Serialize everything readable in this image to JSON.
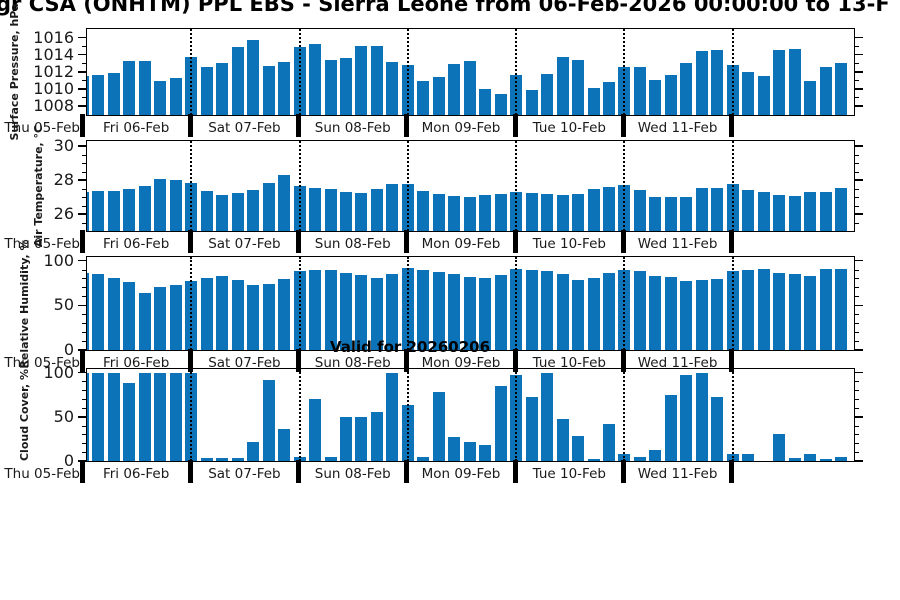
{
  "title": "gr CSA (ONHTM) PPL EBS  - Sierra Leone from 06-Feb-2026 00:00:00 to 13-F",
  "annotation": "Valid for 20260206",
  "colors": {
    "bar": "#0d73b8",
    "axis": "#000000"
  },
  "x_axis": {
    "left_tick_label": "Thu 05-Feb",
    "day_labels": [
      "Fri 06-Feb",
      "Sat 07-Feb",
      "Sun 08-Feb",
      "Mon 09-Feb",
      "Tue 10-Feb",
      "Wed 11-Feb"
    ]
  },
  "chart_data": [
    {
      "type": "bar",
      "name": "surface-pressure",
      "ylabel": "Surface Pressure, hPa",
      "ylim": [
        1007,
        1017
      ],
      "yticks": [
        1008,
        1010,
        1012,
        1014,
        1016
      ],
      "minor_step": 1,
      "values": [
        1011.5,
        1011.6,
        1011.9,
        1013.3,
        1013.3,
        1010.9,
        1011.3,
        1013.7,
        1012.6,
        1013.0,
        1014.9,
        1015.7,
        1012.7,
        1013.1,
        1014.9,
        1015.2,
        1013.4,
        1013.6,
        1015.0,
        1015.0,
        1013.2,
        1012.8,
        1010.9,
        1011.4,
        1012.9,
        1013.3,
        1010.0,
        1009.4,
        1011.6,
        1009.9,
        1011.7,
        1013.7,
        1013.4,
        1010.1,
        1010.8,
        1012.5,
        1012.6,
        1011.0,
        1011.6,
        1013.0,
        1014.4,
        1014.5,
        1012.8,
        1012.0,
        1011.5,
        1014.5,
        1014.7,
        1010.9,
        1012.6,
        1013.0
      ]
    },
    {
      "type": "bar",
      "name": "air-temperature",
      "ylabel": "Air Temperature, °C",
      "ylim": [
        25,
        30.3
      ],
      "yticks": [
        26,
        28,
        30
      ],
      "minor_step": 0.5,
      "values": [
        27.3,
        27.35,
        27.35,
        27.5,
        27.65,
        28.05,
        28.0,
        27.8,
        27.35,
        27.15,
        27.25,
        27.4,
        27.8,
        28.3,
        27.65,
        27.55,
        27.45,
        27.3,
        27.25,
        27.5,
        27.75,
        27.75,
        27.35,
        27.2,
        27.05,
        27.0,
        27.15,
        27.2,
        27.3,
        27.25,
        27.2,
        27.1,
        27.2,
        27.45,
        27.6,
        27.7,
        27.4,
        27.0,
        27.0,
        27.0,
        27.55,
        27.55,
        27.75,
        27.4,
        27.3,
        27.1,
        27.05,
        27.3,
        27.3,
        27.55
      ]
    },
    {
      "type": "bar",
      "name": "relative-humidity",
      "ylabel": "Relative Humidity, %",
      "ylim": [
        0,
        104
      ],
      "yticks": [
        0,
        50,
        100
      ],
      "minor_step": 10,
      "values": [
        86,
        85,
        81,
        76,
        64,
        70,
        73,
        77,
        81,
        83,
        78,
        73,
        74,
        79,
        88,
        90,
        89,
        86,
        84,
        81,
        85,
        92,
        90,
        87,
        85,
        82,
        81,
        84,
        91,
        89,
        88,
        85,
        78,
        80,
        86,
        89,
        88,
        83,
        82,
        77,
        78,
        79,
        88,
        90,
        91,
        86,
        85,
        83,
        91,
        91
      ]
    },
    {
      "type": "bar",
      "name": "cloud-cover",
      "ylabel": "Cloud Cover, %",
      "ylim": [
        0,
        104
      ],
      "yticks": [
        0,
        50,
        100
      ],
      "minor_step": 10,
      "values": [
        100,
        100,
        100,
        88,
        100,
        100,
        100,
        100,
        3,
        3,
        3,
        22,
        92,
        36,
        4,
        70,
        4,
        50,
        50,
        55,
        100,
        63,
        4,
        78,
        27,
        22,
        18,
        85,
        97,
        72,
        100,
        48,
        28,
        2,
        42,
        8,
        5,
        12,
        75,
        97,
        100,
        72,
        8,
        8,
        0,
        30,
        3,
        8,
        2,
        5
      ]
    }
  ]
}
